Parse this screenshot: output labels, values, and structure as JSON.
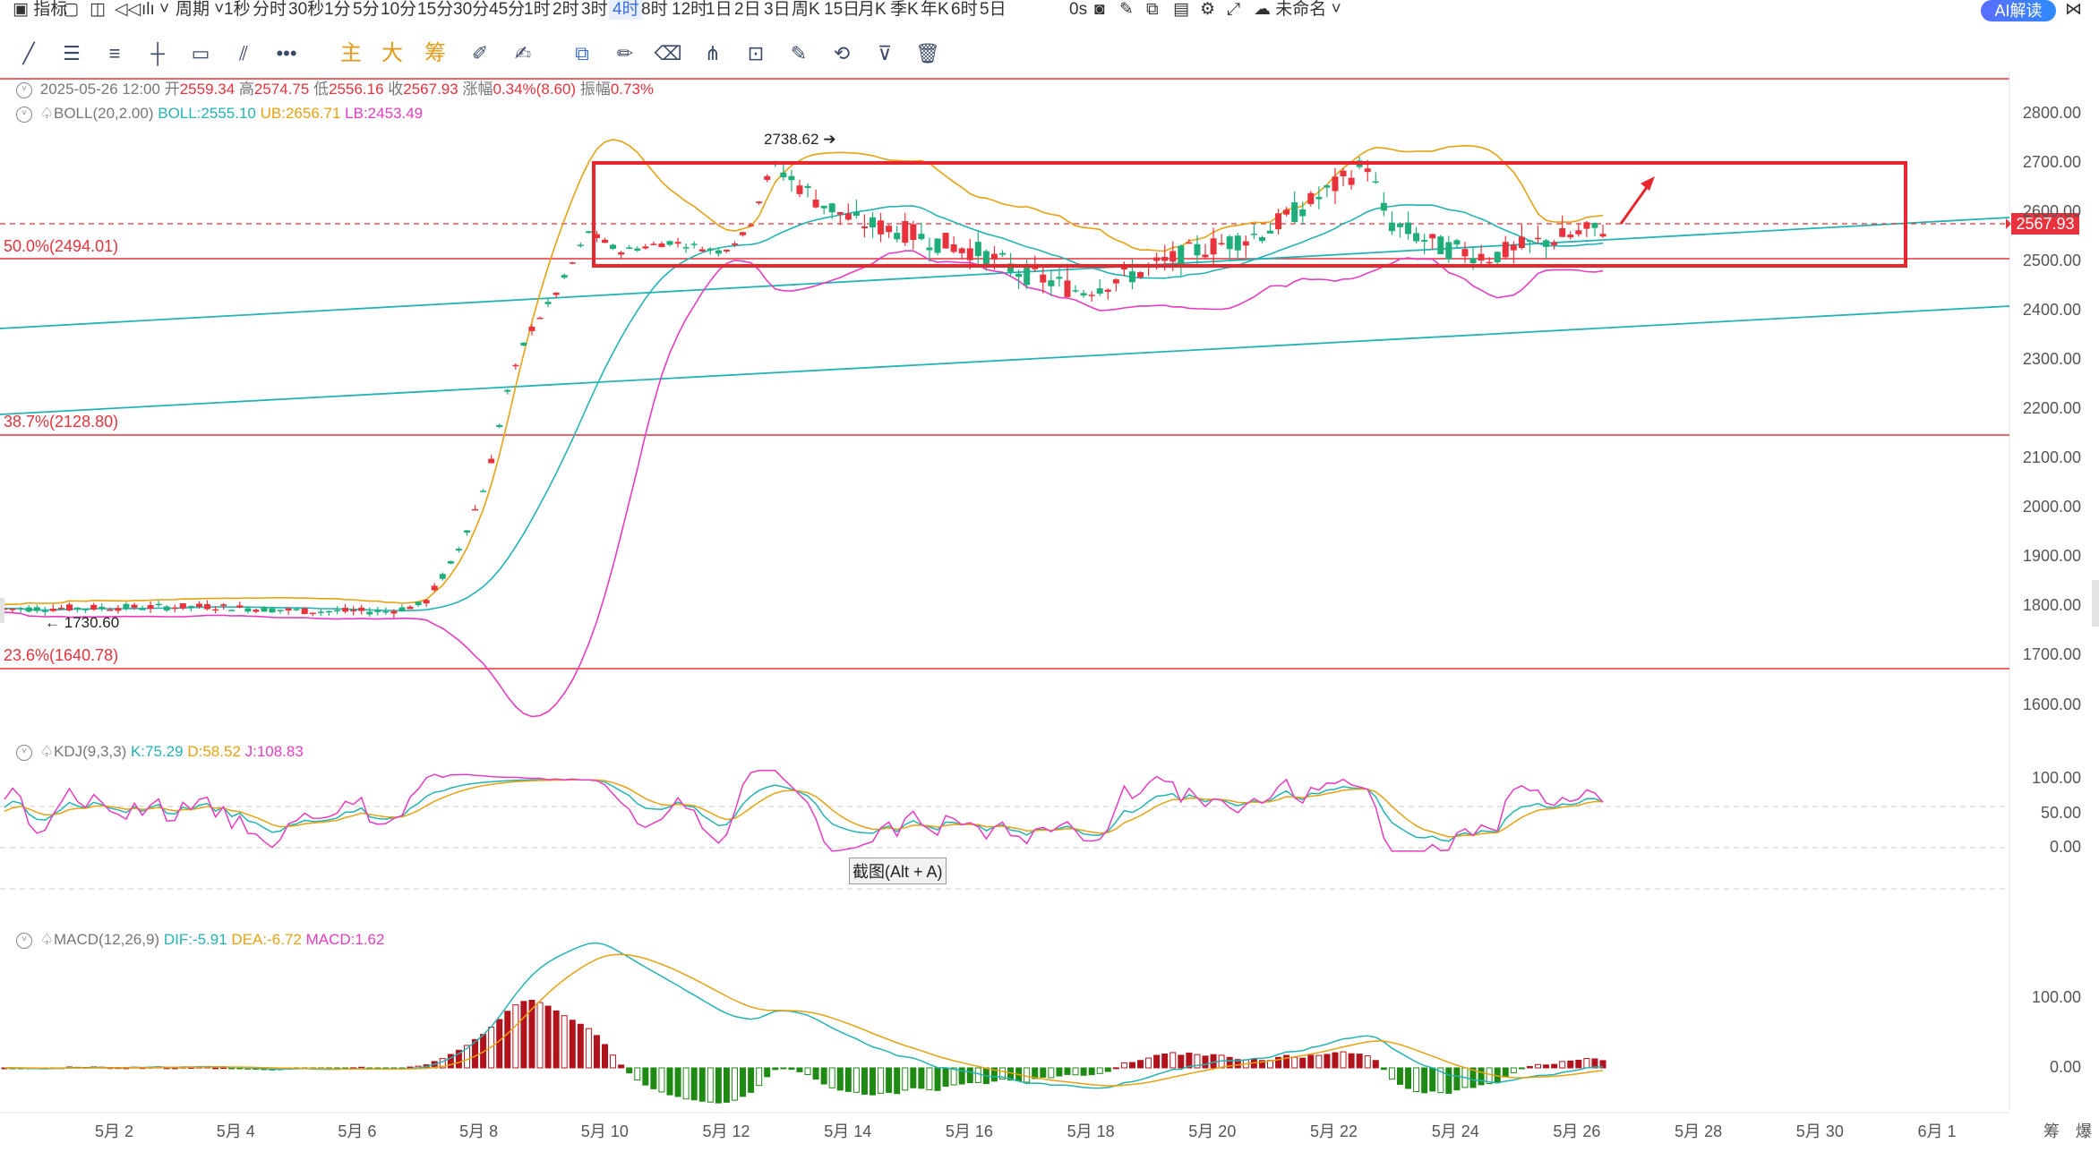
{
  "topbar": {
    "indicator": "指标",
    "period": "周期",
    "periods": [
      "1秒",
      "分时",
      "30秒",
      "1分",
      "5分",
      "10分",
      "15分",
      "30分",
      "45分",
      "1时",
      "2时",
      "3时",
      "4时",
      "8时",
      "12时",
      "1日",
      "2日",
      "3日",
      "周K",
      "15日",
      "月K",
      "季K",
      "年K",
      "6时",
      "5日"
    ],
    "active_period": "4时",
    "countdown": "0s",
    "unnamed": "未命名",
    "ai_button": "AI解读"
  },
  "toolbar": {
    "main": "主",
    "big": "大",
    "chip": "筹"
  },
  "ohlc": {
    "datetime": "2025-05-26 12:00",
    "open_label": "开",
    "open": "2559.34",
    "high_label": "高",
    "high": "2574.75",
    "low_label": "低",
    "low": "2556.16",
    "close_label": "收",
    "close": "2567.93",
    "change_label": "涨幅",
    "change": "0.34%(8.60)",
    "amp_label": "振幅",
    "amp": "0.73%"
  },
  "boll": {
    "name": "BOLL(20,2.00)",
    "mid": "BOLL:2555.10",
    "ub": "UB:2656.71",
    "lb": "LB:2453.49"
  },
  "kdj": {
    "name": "KDJ(9,3,3)",
    "k": "K:75.29",
    "d": "D:58.52",
    "j": "J:108.83"
  },
  "macd": {
    "name": "MACD(12,26,9)",
    "dif": "DIF:-5.91",
    "dea": "DEA:-6.72",
    "macd": "MACD:1.62"
  },
  "fib": {
    "f50": "50.0%(2494.01)",
    "f38": "38.7%(2128.80)",
    "f23": "23.6%(1640.78)"
  },
  "markers": {
    "high": "2738.62",
    "low": "1730.60"
  },
  "price_tag": "2567.93",
  "tooltip": "截图(Alt + A)",
  "y_axis_main": [
    "2800.00",
    "2700.00",
    "2600.00",
    "2500.00",
    "2400.00",
    "2300.00",
    "2200.00",
    "2100.00",
    "2000.00",
    "1900.00",
    "1800.00",
    "1700.00",
    "1600.00"
  ],
  "y_axis_kdj": [
    "100.00",
    "50.00",
    "0.00"
  ],
  "y_axis_macd": [
    "100.00",
    "0.00"
  ],
  "x_axis": [
    "5月 2",
    "5月 4",
    "5月 6",
    "5月 8",
    "5月 10",
    "5月 12",
    "5月 14",
    "5月 16",
    "5月 18",
    "5月 20",
    "5月 22",
    "5月 24",
    "5月 26",
    "5月 28",
    "5月 30",
    "6月 1"
  ],
  "corner": [
    "筹",
    "爆"
  ],
  "colors": {
    "up": "#e8323c",
    "down": "#1fae79",
    "teal": "#23b3b3",
    "orange": "#e6a212",
    "pink": "#e63dc0",
    "fib": "#e8323c",
    "macd_up": "#b2121c",
    "macd_down": "#1e8a14"
  }
}
